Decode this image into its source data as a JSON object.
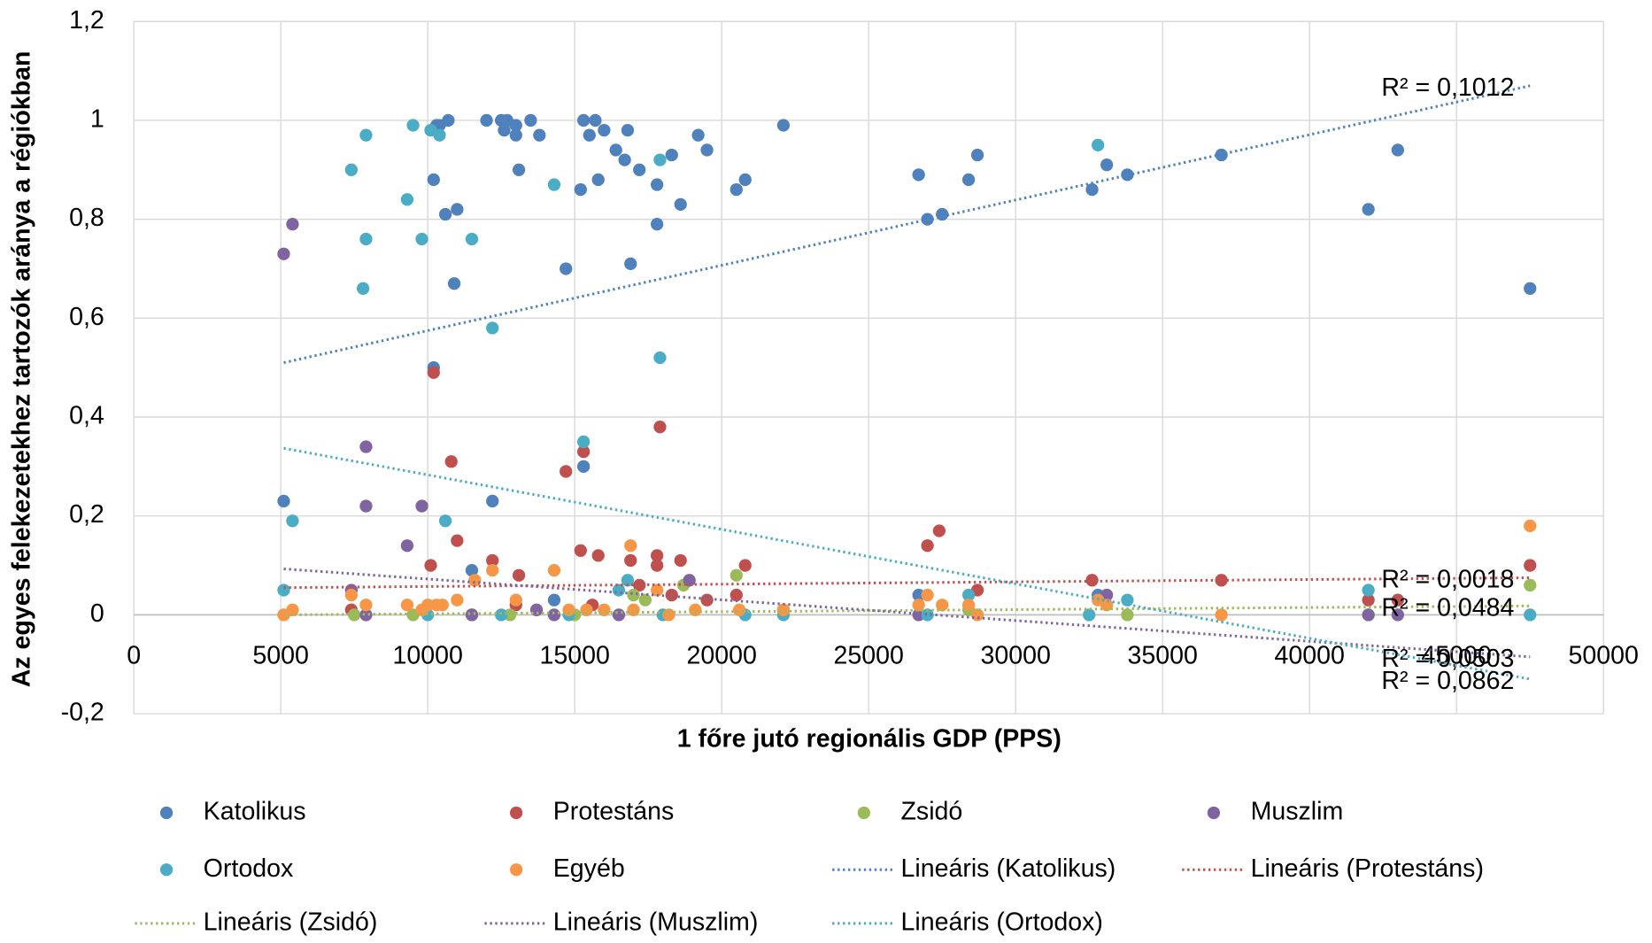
{
  "chart_data": {
    "type": "scatter",
    "xlabel": "1 főre jutó regionális GDP (PPS)",
    "ylabel": "Az egyes felekezetekhez tartozók aránya a régiókban",
    "xlim": [
      0,
      50000
    ],
    "xticks": [
      0,
      5000,
      10000,
      15000,
      20000,
      25000,
      30000,
      35000,
      40000,
      45000,
      50000
    ],
    "ylim": [
      -0.2,
      1.2
    ],
    "yticks": [
      {
        "value": -0.2,
        "label": "-0,2"
      },
      0,
      {
        "value": 0.2,
        "label": "0,2"
      },
      {
        "value": 0.4,
        "label": "0,4"
      },
      {
        "value": 0.6,
        "label": "0,6"
      },
      {
        "value": 0.8,
        "label": "0,8"
      },
      1,
      {
        "value": 1.2,
        "label": "1,2"
      }
    ],
    "grid": true,
    "series": [
      {
        "name": "Katolikus",
        "color": "#4f81bd",
        "x": [
          5100,
          10200,
          10200,
          10300,
          10400,
          10600,
          10700,
          10900,
          11000,
          11500,
          11500,
          12000,
          12200,
          12500,
          12600,
          12700,
          13000,
          13000,
          13100,
          13500,
          13800,
          14300,
          14700,
          15200,
          15300,
          15300,
          15500,
          15700,
          15800,
          16000,
          16400,
          16700,
          16800,
          16900,
          17200,
          17800,
          17800,
          18300,
          18600,
          19200,
          19500,
          20500,
          20800,
          22100,
          26700,
          27000,
          27500,
          28400,
          28700,
          32600,
          33100,
          33800,
          37000,
          42000,
          43000,
          47500,
          32800,
          26700
        ],
        "values": [
          0.23,
          0.5,
          0.88,
          0.99,
          0.99,
          0.81,
          1.0,
          0.67,
          0.82,
          0.09,
          0.0,
          1.0,
          0.23,
          1.0,
          0.98,
          1.0,
          0.99,
          0.97,
          0.9,
          1.0,
          0.97,
          0.03,
          0.7,
          0.86,
          1.0,
          0.3,
          0.97,
          1.0,
          0.88,
          0.98,
          0.94,
          0.92,
          0.98,
          0.71,
          0.9,
          0.87,
          0.79,
          0.93,
          0.83,
          0.97,
          0.94,
          0.86,
          0.88,
          0.99,
          0.89,
          0.8,
          0.81,
          0.88,
          0.93,
          0.86,
          0.91,
          0.89,
          0.93,
          0.82,
          0.94,
          0.66,
          0.04,
          0.04
        ]
      },
      {
        "name": "Protestáns",
        "color": "#c0504d",
        "x": [
          7400,
          10100,
          10200,
          10800,
          11000,
          12200,
          13100,
          14700,
          15200,
          15300,
          15800,
          16900,
          17200,
          17800,
          17800,
          17900,
          18600,
          18300,
          19500,
          20500,
          20800,
          27000,
          27400,
          28700,
          32600,
          37000,
          42000,
          43000,
          47500,
          13000,
          15600
        ],
        "values": [
          0.01,
          0.1,
          0.49,
          0.31,
          0.15,
          0.11,
          0.08,
          0.29,
          0.13,
          0.33,
          0.12,
          0.11,
          0.06,
          0.12,
          0.1,
          0.38,
          0.11,
          0.04,
          0.03,
          0.04,
          0.1,
          0.14,
          0.17,
          0.05,
          0.07,
          0.07,
          0.03,
          0.03,
          0.1,
          0.02,
          0.02
        ]
      },
      {
        "name": "Zsidó",
        "color": "#9bbb59",
        "x": [
          20500,
          17000,
          18700,
          47500,
          17400,
          5100,
          7500,
          9500,
          12800,
          15000,
          22100,
          28400,
          33800,
          42000
        ],
        "values": [
          0.08,
          0.04,
          0.06,
          0.06,
          0.03,
          0.0,
          0.0,
          0.0,
          0.0,
          0.0,
          0.01,
          0.01,
          0.0,
          0.0
        ]
      },
      {
        "name": "Muszlim",
        "color": "#8064a2",
        "x": [
          5100,
          5400,
          7900,
          7900,
          9300,
          9800,
          7400,
          7900,
          11500,
          13700,
          18900,
          16500,
          26700,
          33100,
          42000,
          43000,
          14300
        ],
        "values": [
          0.73,
          0.79,
          0.34,
          0.22,
          0.14,
          0.22,
          0.05,
          0.0,
          0.0,
          0.01,
          0.07,
          0.0,
          0.0,
          0.04,
          0.0,
          0.0,
          0.0
        ]
      },
      {
        "name": "Ortodox",
        "color": "#4bacc6",
        "x": [
          5100,
          5400,
          7400,
          7800,
          7900,
          7900,
          9300,
          9500,
          9800,
          10100,
          10400,
          10600,
          11500,
          12200,
          14300,
          15300,
          16500,
          16800,
          17900,
          17900,
          32800,
          28400,
          33800,
          47500,
          42000,
          10000,
          12500,
          18000,
          20800,
          22100,
          27000,
          32500,
          14800
        ],
        "values": [
          0.05,
          0.19,
          0.9,
          0.66,
          0.76,
          0.97,
          0.84,
          0.99,
          0.76,
          0.98,
          0.97,
          0.19,
          0.76,
          0.58,
          0.87,
          0.35,
          0.05,
          0.07,
          0.52,
          0.92,
          0.95,
          0.04,
          0.03,
          0.0,
          0.05,
          0.0,
          0.0,
          0.0,
          0.0,
          0.0,
          0.0,
          0.0,
          0.0
        ]
      },
      {
        "name": "Egyéb",
        "color": "#f79646",
        "x": [
          5100,
          5400,
          7400,
          7900,
          9300,
          9800,
          10000,
          10300,
          10500,
          11000,
          11600,
          12200,
          13000,
          14300,
          14800,
          15400,
          16000,
          16900,
          17000,
          17800,
          18200,
          19100,
          20600,
          22100,
          26700,
          27000,
          27500,
          28400,
          28700,
          32800,
          33100,
          37000,
          47500
        ],
        "values": [
          0.0,
          0.01,
          0.04,
          0.02,
          0.02,
          0.01,
          0.02,
          0.02,
          0.02,
          0.03,
          0.07,
          0.09,
          0.03,
          0.09,
          0.01,
          0.01,
          0.01,
          0.14,
          0.01,
          0.05,
          0.0,
          0.01,
          0.01,
          0.01,
          0.02,
          0.04,
          0.02,
          0.02,
          0.0,
          0.03,
          0.02,
          0.0,
          0.18
        ]
      }
    ],
    "trendlines": [
      {
        "name": "Lineáris (Katolikus)",
        "color": "#4f81bd",
        "x": [
          5100,
          47500
        ],
        "values": [
          0.51,
          1.07
        ],
        "r2_label": "R² = 0,1012"
      },
      {
        "name": "Lineáris (Protestáns)",
        "color": "#c0504d",
        "x": [
          5100,
          47500
        ],
        "values": [
          0.055,
          0.075
        ],
        "r2_label": "R² = 0,0018"
      },
      {
        "name": "Lineáris (Zsidó)",
        "color": "#9bbb59",
        "x": [
          5100,
          47500
        ],
        "values": [
          0.0,
          0.018
        ],
        "r2_label": "R² = 0,0484"
      },
      {
        "name": "Lineáris (Muszlim)",
        "color": "#8064a2",
        "x": [
          5100,
          47500
        ],
        "values": [
          0.093,
          -0.085
        ],
        "r2_label": "R² = 0,0503"
      },
      {
        "name": "Lineáris (Ortodox)",
        "color": "#4bacc6",
        "x": [
          5100,
          47500
        ],
        "values": [
          0.337,
          -0.13
        ],
        "r2_label": "R² = 0,0862"
      }
    ]
  }
}
